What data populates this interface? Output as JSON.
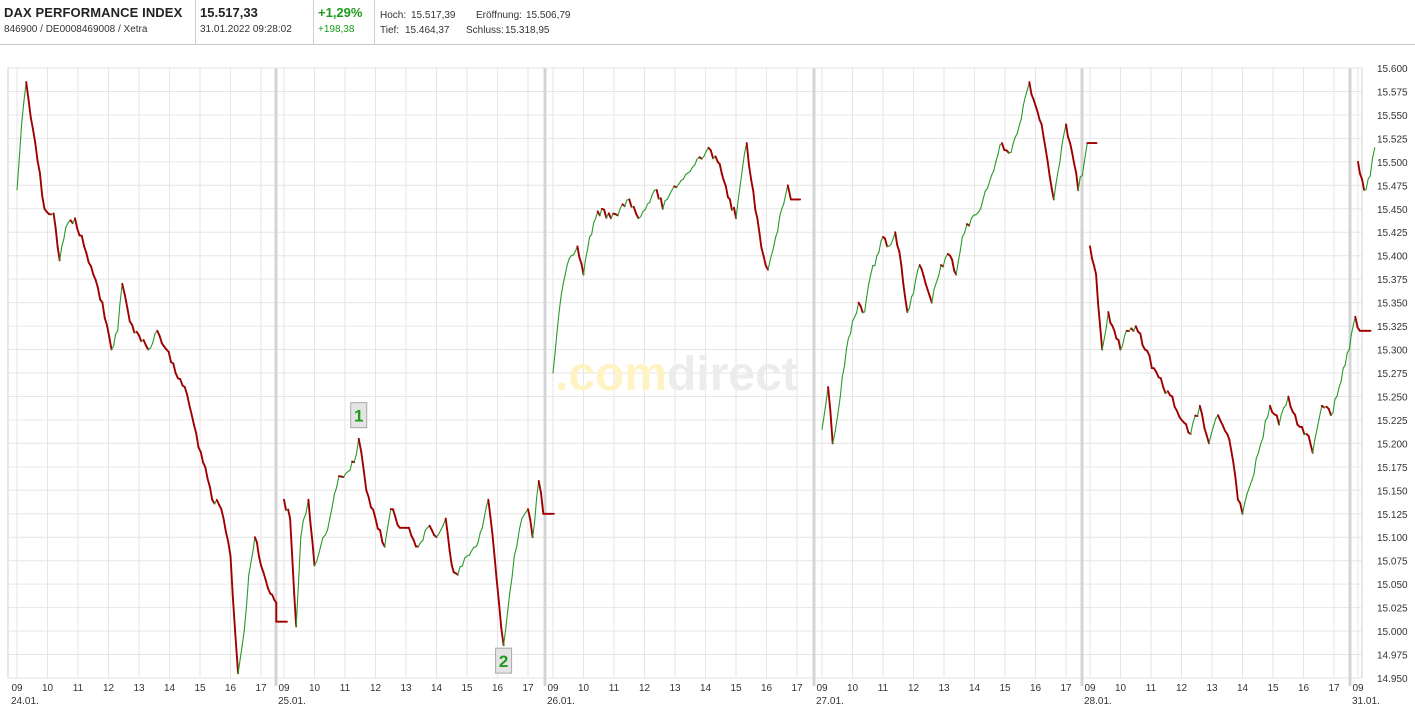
{
  "header": {
    "name": "DAX PERFORMANCE INDEX",
    "ids": "846900 / DE0008469008 / Xetra",
    "price": "15.517,33",
    "datetime": "31.01.2022 09:28:02",
    "change_pct": "+1,29%",
    "change_abs": "+198,38",
    "hoch_label": "Hoch:",
    "hoch": "15.517,39",
    "tief_label": "Tief:",
    "tief": "15.464,37",
    "eroeffnung_label": "Eröffnung:",
    "eroeffnung": "15.506,79",
    "schluss_label": "Schluss:",
    "schluss": "15.318,95"
  },
  "watermark": {
    "part1": ".com",
    "part2": "direct"
  },
  "colors": {
    "up": "#2a9a2a",
    "down": "#a00000",
    "grid": "#e6e6e6",
    "day_sep": "#d4d4d4",
    "marker_text": "#1c9a1c"
  },
  "chart_data": {
    "type": "line",
    "style": "candlestick-intraday",
    "ylim": [
      14950,
      15600
    ],
    "y_ticks": [
      "15.600",
      "15.575",
      "15.550",
      "15.525",
      "15.500",
      "15.475",
      "15.450",
      "15.425",
      "15.400",
      "15.375",
      "15.350",
      "15.325",
      "15.300",
      "15.275",
      "15.250",
      "15.225",
      "15.200",
      "15.175",
      "15.150",
      "15.125",
      "15.100",
      "15.075",
      "15.050",
      "15.025",
      "15.000",
      "14.975",
      "14.950"
    ],
    "grid": true,
    "days": [
      {
        "date": "24.01.",
        "hours": [
          "09",
          "10",
          "11",
          "12",
          "13",
          "14",
          "15",
          "16",
          "17"
        ],
        "path": [
          [
            9.0,
            15470
          ],
          [
            9.15,
            15540
          ],
          [
            9.3,
            15585
          ],
          [
            9.6,
            15520
          ],
          [
            9.9,
            15450
          ],
          [
            10.2,
            15445
          ],
          [
            10.4,
            15395
          ],
          [
            10.6,
            15430
          ],
          [
            10.9,
            15440
          ],
          [
            11.2,
            15410
          ],
          [
            11.5,
            15380
          ],
          [
            11.8,
            15350
          ],
          [
            12.1,
            15300
          ],
          [
            12.3,
            15320
          ],
          [
            12.45,
            15370
          ],
          [
            12.7,
            15330
          ],
          [
            13.0,
            15315
          ],
          [
            13.3,
            15300
          ],
          [
            13.6,
            15320
          ],
          [
            13.9,
            15300
          ],
          [
            14.2,
            15275
          ],
          [
            14.5,
            15260
          ],
          [
            14.8,
            15220
          ],
          [
            15.1,
            15180
          ],
          [
            15.4,
            15140
          ],
          [
            15.7,
            15130
          ],
          [
            16.0,
            15080
          ],
          [
            16.15,
            15000
          ],
          [
            16.25,
            14955
          ],
          [
            16.45,
            15000
          ],
          [
            16.6,
            15060
          ],
          [
            16.8,
            15100
          ],
          [
            17.0,
            15070
          ],
          [
            17.3,
            15040
          ],
          [
            17.5,
            15030
          ],
          [
            17.5,
            15010
          ],
          [
            17.85,
            15010
          ]
        ]
      },
      {
        "date": "25.01.",
        "hours": [
          "09",
          "10",
          "11",
          "12",
          "13",
          "14",
          "15",
          "16",
          "17"
        ],
        "path": [
          [
            9.0,
            15140
          ],
          [
            9.2,
            15120
          ],
          [
            9.4,
            15005
          ],
          [
            9.55,
            15100
          ],
          [
            9.8,
            15140
          ],
          [
            10.0,
            15070
          ],
          [
            10.2,
            15090
          ],
          [
            10.5,
            15120
          ],
          [
            10.8,
            15165
          ],
          [
            11.1,
            15170
          ],
          [
            11.3,
            15180
          ],
          [
            11.45,
            15205
          ],
          [
            11.7,
            15150
          ],
          [
            12.0,
            15120
          ],
          [
            12.3,
            15090
          ],
          [
            12.5,
            15130
          ],
          [
            12.8,
            15110
          ],
          [
            13.1,
            15110
          ],
          [
            13.4,
            15090
          ],
          [
            13.7,
            15110
          ],
          [
            14.0,
            15100
          ],
          [
            14.3,
            15120
          ],
          [
            14.5,
            15070
          ],
          [
            14.7,
            15060
          ],
          [
            15.0,
            15080
          ],
          [
            15.3,
            15090
          ],
          [
            15.5,
            15110
          ],
          [
            15.7,
            15140
          ],
          [
            15.9,
            15080
          ],
          [
            16.05,
            15030
          ],
          [
            16.2,
            14985
          ],
          [
            16.4,
            15040
          ],
          [
            16.55,
            15080
          ],
          [
            16.8,
            15120
          ],
          [
            17.0,
            15130
          ],
          [
            17.15,
            15100
          ],
          [
            17.35,
            15160
          ],
          [
            17.5,
            15125
          ],
          [
            17.85,
            15125
          ]
        ]
      },
      {
        "date": "26.01.",
        "hours": [
          "09",
          "10",
          "11",
          "12",
          "13",
          "14",
          "15",
          "16",
          "17"
        ],
        "path": [
          [
            9.0,
            15275
          ],
          [
            9.2,
            15340
          ],
          [
            9.4,
            15380
          ],
          [
            9.6,
            15400
          ],
          [
            9.8,
            15410
          ],
          [
            10.0,
            15380
          ],
          [
            10.2,
            15420
          ],
          [
            10.4,
            15440
          ],
          [
            10.6,
            15450
          ],
          [
            10.9,
            15440
          ],
          [
            11.2,
            15450
          ],
          [
            11.5,
            15460
          ],
          [
            11.8,
            15440
          ],
          [
            12.1,
            15455
          ],
          [
            12.4,
            15470
          ],
          [
            12.6,
            15450
          ],
          [
            12.9,
            15470
          ],
          [
            13.2,
            15480
          ],
          [
            13.5,
            15490
          ],
          [
            13.8,
            15505
          ],
          [
            14.1,
            15515
          ],
          [
            14.4,
            15500
          ],
          [
            14.6,
            15480
          ],
          [
            14.8,
            15460
          ],
          [
            15.0,
            15440
          ],
          [
            15.2,
            15490
          ],
          [
            15.35,
            15520
          ],
          [
            15.5,
            15480
          ],
          [
            15.7,
            15440
          ],
          [
            15.9,
            15400
          ],
          [
            16.05,
            15385
          ],
          [
            16.3,
            15420
          ],
          [
            16.5,
            15450
          ],
          [
            16.7,
            15475
          ],
          [
            16.8,
            15460
          ],
          [
            17.1,
            15460
          ]
        ]
      },
      {
        "date": "27.01.",
        "hours": [
          "09",
          "10",
          "11",
          "12",
          "13",
          "14",
          "15",
          "16",
          "17"
        ],
        "path": [
          [
            9.0,
            15215
          ],
          [
            9.2,
            15260
          ],
          [
            9.35,
            15200
          ],
          [
            9.6,
            15250
          ],
          [
            9.8,
            15300
          ],
          [
            10.0,
            15330
          ],
          [
            10.2,
            15350
          ],
          [
            10.4,
            15340
          ],
          [
            10.6,
            15380
          ],
          [
            10.8,
            15400
          ],
          [
            11.0,
            15420
          ],
          [
            11.2,
            15410
          ],
          [
            11.4,
            15425
          ],
          [
            11.6,
            15390
          ],
          [
            11.8,
            15340
          ],
          [
            12.0,
            15360
          ],
          [
            12.2,
            15390
          ],
          [
            12.4,
            15370
          ],
          [
            12.6,
            15350
          ],
          [
            12.9,
            15390
          ],
          [
            13.2,
            15400
          ],
          [
            13.4,
            15380
          ],
          [
            13.6,
            15420
          ],
          [
            13.9,
            15440
          ],
          [
            14.2,
            15450
          ],
          [
            14.5,
            15480
          ],
          [
            14.7,
            15500
          ],
          [
            14.9,
            15520
          ],
          [
            15.2,
            15510
          ],
          [
            15.4,
            15530
          ],
          [
            15.6,
            15560
          ],
          [
            15.8,
            15585
          ],
          [
            16.0,
            15560
          ],
          [
            16.2,
            15540
          ],
          [
            16.4,
            15500
          ],
          [
            16.6,
            15460
          ],
          [
            16.8,
            15500
          ],
          [
            17.0,
            15540
          ],
          [
            17.2,
            15510
          ],
          [
            17.4,
            15470
          ],
          [
            17.6,
            15500
          ],
          [
            17.7,
            15520
          ],
          [
            18.0,
            15520
          ]
        ]
      },
      {
        "date": "28.01.",
        "hours": [
          "09",
          "10",
          "11",
          "12",
          "13",
          "14",
          "15",
          "16",
          "17"
        ],
        "path": [
          [
            9.0,
            15410
          ],
          [
            9.2,
            15380
          ],
          [
            9.4,
            15300
          ],
          [
            9.6,
            15340
          ],
          [
            9.8,
            15320
          ],
          [
            10.0,
            15300
          ],
          [
            10.2,
            15320
          ],
          [
            10.5,
            15325
          ],
          [
            10.8,
            15300
          ],
          [
            11.1,
            15280
          ],
          [
            11.4,
            15260
          ],
          [
            11.7,
            15250
          ],
          [
            12.0,
            15225
          ],
          [
            12.3,
            15210
          ],
          [
            12.6,
            15240
          ],
          [
            12.9,
            15200
          ],
          [
            13.2,
            15230
          ],
          [
            13.5,
            15210
          ],
          [
            13.7,
            15180
          ],
          [
            13.85,
            15140
          ],
          [
            14.0,
            15125
          ],
          [
            14.3,
            15160
          ],
          [
            14.6,
            15200
          ],
          [
            14.9,
            15240
          ],
          [
            15.2,
            15220
          ],
          [
            15.5,
            15250
          ],
          [
            15.8,
            15220
          ],
          [
            16.1,
            15210
          ],
          [
            16.3,
            15190
          ],
          [
            16.6,
            15240
          ],
          [
            16.9,
            15230
          ],
          [
            17.1,
            15250
          ],
          [
            17.3,
            15280
          ],
          [
            17.5,
            15300
          ],
          [
            17.7,
            15335
          ],
          [
            17.85,
            15320
          ],
          [
            18.2,
            15320
          ]
        ]
      },
      {
        "date": "31.01.",
        "hours": [
          "09"
        ],
        "path": [
          [
            9.0,
            15500
          ],
          [
            9.2,
            15470
          ],
          [
            9.4,
            15485
          ],
          [
            9.55,
            15515
          ]
        ]
      }
    ],
    "markers": [
      {
        "label": "1",
        "day": 1,
        "hour": 11.45,
        "value": 15205,
        "position": "above"
      },
      {
        "label": "2",
        "day": 1,
        "hour": 16.2,
        "value": 14985,
        "position": "below"
      }
    ]
  }
}
